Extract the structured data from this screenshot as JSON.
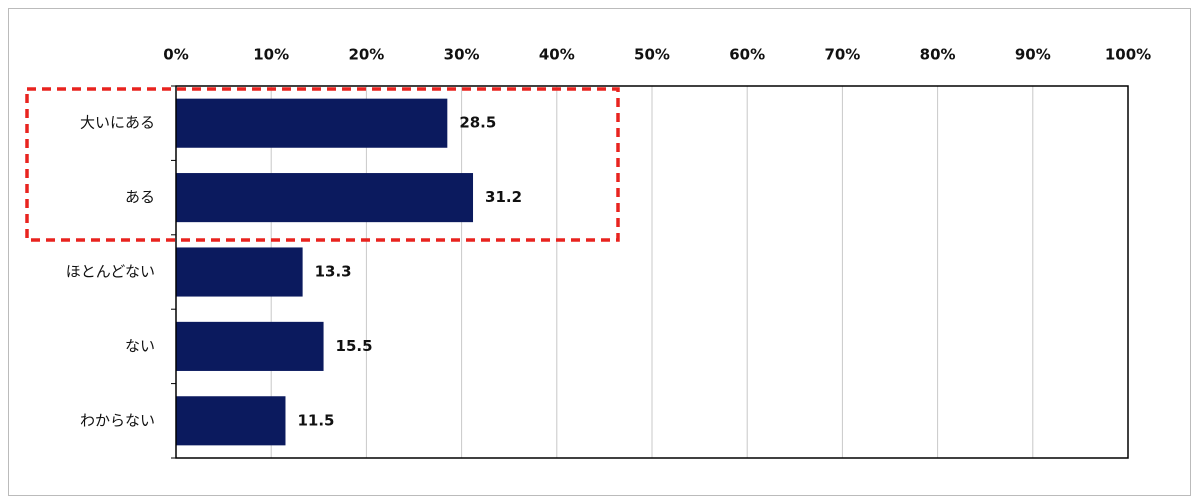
{
  "chart_data": {
    "type": "barh",
    "categories": [
      "大いにある",
      "ある",
      "ほとんどない",
      "ない",
      "わからない"
    ],
    "values": [
      28.5,
      31.2,
      13.3,
      15.5,
      11.5
    ],
    "color": "#0b1a5e",
    "xlim": [
      0,
      100
    ],
    "xticks": [
      {
        "value": 0,
        "label": "0%"
      },
      {
        "value": 10,
        "label": "10%"
      },
      {
        "value": 20,
        "label": "20%"
      },
      {
        "value": 30,
        "label": "30%"
      },
      {
        "value": 40,
        "label": "40%"
      },
      {
        "value": 50,
        "label": "50%"
      },
      {
        "value": 60,
        "label": "60%"
      },
      {
        "value": 70,
        "label": "70%"
      },
      {
        "value": 80,
        "label": "80%"
      },
      {
        "value": 90,
        "label": "90%"
      },
      {
        "value": 100,
        "label": "100%"
      }
    ],
    "grid": true
  }
}
